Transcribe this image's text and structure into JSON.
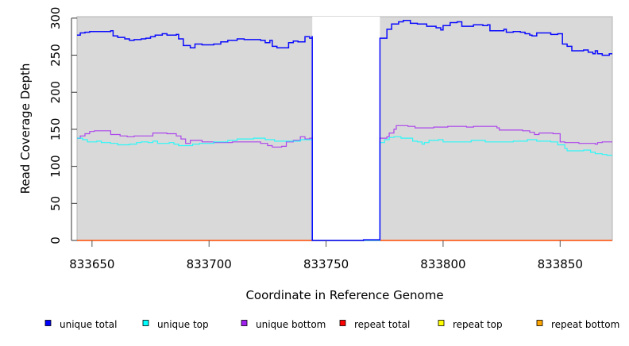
{
  "chart_data": {
    "type": "line",
    "title": "",
    "xlabel": "Coordinate in Reference Genome",
    "ylabel": "Read Coverage Depth",
    "xlim": [
      833643.6,
      833872.3
    ],
    "ylim": [
      0,
      302
    ],
    "xticks": [
      833650,
      833700,
      833750,
      833800,
      833850
    ],
    "xtick_labels": [
      "833650",
      "833700",
      "833750",
      "833800",
      "833850"
    ],
    "yticks": [
      0,
      50,
      100,
      150,
      200,
      250,
      300
    ],
    "ytick_labels": [
      "0",
      "50",
      "100",
      "150",
      "200",
      "250",
      "300"
    ],
    "background_color": "#d9d9d9",
    "uncovered_region": [
      833744.1,
      833773
    ],
    "legend_placement": "bottom",
    "series": [
      {
        "name": "unique total",
        "color": "#0000ff",
        "points": [
          [
            833643.6,
            277
          ],
          [
            833645,
            280
          ],
          [
            833647,
            281
          ],
          [
            833649,
            282
          ],
          [
            833658,
            283
          ],
          [
            833659,
            276
          ],
          [
            833661,
            274
          ],
          [
            833664,
            272
          ],
          [
            833666,
            270
          ],
          [
            833668,
            271
          ],
          [
            833671,
            272
          ],
          [
            833673,
            273
          ],
          [
            833675,
            275
          ],
          [
            833677,
            277
          ],
          [
            833680,
            279
          ],
          [
            833682,
            277
          ],
          [
            833686,
            278
          ],
          [
            833687,
            272
          ],
          [
            833689,
            263
          ],
          [
            833692,
            260
          ],
          [
            833694,
            265
          ],
          [
            833697,
            264
          ],
          [
            833702,
            265
          ],
          [
            833705,
            268
          ],
          [
            833708,
            270
          ],
          [
            833712,
            272
          ],
          [
            833715,
            271
          ],
          [
            833722,
            270
          ],
          [
            833724,
            267
          ],
          [
            833726,
            270
          ],
          [
            833727,
            262
          ],
          [
            833729,
            260
          ],
          [
            833734,
            267
          ],
          [
            833736,
            269
          ],
          [
            833738,
            268
          ],
          [
            833741,
            275
          ],
          [
            833743,
            273
          ],
          [
            833744,
            275
          ],
          [
            833744.1,
            0
          ],
          [
            833766,
            1
          ],
          [
            833773,
            273
          ],
          [
            833776,
            285
          ],
          [
            833778,
            292
          ],
          [
            833781,
            295
          ],
          [
            833783,
            297
          ],
          [
            833786,
            293
          ],
          [
            833789,
            292
          ],
          [
            833793,
            289
          ],
          [
            833797,
            287
          ],
          [
            833799,
            284
          ],
          [
            833800,
            290
          ],
          [
            833803,
            294
          ],
          [
            833806,
            295
          ],
          [
            833808,
            289
          ],
          [
            833812,
            289
          ],
          [
            833813,
            291
          ],
          [
            833817,
            290
          ],
          [
            833819,
            291
          ],
          [
            833820,
            283
          ],
          [
            833825,
            283
          ],
          [
            833826,
            285
          ],
          [
            833827,
            281
          ],
          [
            833830,
            282
          ],
          [
            833833,
            281
          ],
          [
            833835,
            279
          ],
          [
            833837,
            277
          ],
          [
            833838,
            276
          ],
          [
            833840,
            280
          ],
          [
            833844,
            280
          ],
          [
            833846,
            278
          ],
          [
            833849,
            279
          ],
          [
            833851,
            265
          ],
          [
            833853,
            262
          ],
          [
            833855,
            256
          ],
          [
            833860,
            257
          ],
          [
            833862,
            254
          ],
          [
            833864,
            252
          ],
          [
            833865,
            256
          ],
          [
            833866,
            252
          ],
          [
            833868,
            250
          ],
          [
            833870,
            250
          ],
          [
            833871,
            252
          ]
        ]
      },
      {
        "name": "unique top",
        "color": "#00ffff",
        "points": [
          [
            833643.6,
            138
          ],
          [
            833646,
            136
          ],
          [
            833648,
            133
          ],
          [
            833652,
            134
          ],
          [
            833654,
            132
          ],
          [
            833658,
            131
          ],
          [
            833661,
            129
          ],
          [
            833666,
            130
          ],
          [
            833669,
            132
          ],
          [
            833671,
            133
          ],
          [
            833674,
            132
          ],
          [
            833676,
            134
          ],
          [
            833678,
            131
          ],
          [
            833683,
            132
          ],
          [
            833685,
            130
          ],
          [
            833687,
            128
          ],
          [
            833691,
            128
          ],
          [
            833693,
            130
          ],
          [
            833696,
            131
          ],
          [
            833702,
            133
          ],
          [
            833708,
            135
          ],
          [
            833712,
            137
          ],
          [
            833716,
            137
          ],
          [
            833719,
            138
          ],
          [
            833724,
            136
          ],
          [
            833728,
            134
          ],
          [
            833734,
            134
          ],
          [
            833739,
            136
          ],
          [
            833744,
            137
          ],
          [
            833744.1,
            0
          ],
          [
            833766,
            0
          ],
          [
            833773,
            132
          ],
          [
            833775,
            136
          ],
          [
            833777,
            139
          ],
          [
            833779,
            140
          ],
          [
            833782,
            138
          ],
          [
            833785,
            138
          ],
          [
            833787,
            134
          ],
          [
            833789,
            133
          ],
          [
            833791,
            130
          ],
          [
            833792,
            132
          ],
          [
            833794,
            135
          ],
          [
            833798,
            136
          ],
          [
            833800,
            133
          ],
          [
            833812,
            135
          ],
          [
            833818,
            133
          ],
          [
            833826,
            133
          ],
          [
            833830,
            134
          ],
          [
            833836,
            136
          ],
          [
            833840,
            134
          ],
          [
            833846,
            133
          ],
          [
            833849,
            129
          ],
          [
            833852,
            124
          ],
          [
            833853,
            121
          ],
          [
            833860,
            122
          ],
          [
            833863,
            119
          ],
          [
            833865,
            117
          ],
          [
            833868,
            116
          ],
          [
            833870,
            115
          ]
        ]
      },
      {
        "name": "unique bottom",
        "color": "#a020f0",
        "points": [
          [
            833643.6,
            138
          ],
          [
            833645,
            141
          ],
          [
            833647,
            144
          ],
          [
            833649,
            147
          ],
          [
            833651,
            148
          ],
          [
            833658,
            143
          ],
          [
            833662,
            141
          ],
          [
            833665,
            140
          ],
          [
            833668,
            141
          ],
          [
            833676,
            145
          ],
          [
            833682,
            144
          ],
          [
            833686,
            141
          ],
          [
            833688,
            137
          ],
          [
            833690,
            131
          ],
          [
            833692,
            135
          ],
          [
            833697,
            133
          ],
          [
            833702,
            132
          ],
          [
            833710,
            133
          ],
          [
            833716,
            133
          ],
          [
            833722,
            131
          ],
          [
            833725,
            128
          ],
          [
            833727,
            126
          ],
          [
            833731,
            127
          ],
          [
            833733,
            133
          ],
          [
            833736,
            135
          ],
          [
            833739,
            140
          ],
          [
            833741,
            137
          ],
          [
            833743,
            138
          ],
          [
            833744.1,
            0
          ],
          [
            833766,
            0
          ],
          [
            833773,
            138
          ],
          [
            833776,
            140
          ],
          [
            833777,
            145
          ],
          [
            833779,
            150
          ],
          [
            833780,
            155
          ],
          [
            833785,
            154
          ],
          [
            833788,
            152
          ],
          [
            833796,
            153
          ],
          [
            833802,
            154
          ],
          [
            833810,
            153
          ],
          [
            833813,
            154
          ],
          [
            833823,
            152
          ],
          [
            833824,
            149
          ],
          [
            833834,
            148
          ],
          [
            833837,
            146
          ],
          [
            833839,
            143
          ],
          [
            833841,
            145
          ],
          [
            833847,
            144
          ],
          [
            833850,
            133
          ],
          [
            833852,
            132
          ],
          [
            833858,
            131
          ],
          [
            833865,
            130
          ],
          [
            833866,
            132
          ],
          [
            833868,
            133
          ],
          [
            833870,
            133
          ]
        ]
      },
      {
        "name": "repeat total",
        "color": "#ff0000",
        "points": [
          [
            833643.6,
            0
          ],
          [
            833872.3,
            0
          ]
        ]
      },
      {
        "name": "repeat top",
        "color": "#ffff00",
        "points": [
          [
            833643.6,
            0
          ],
          [
            833872.3,
            0
          ]
        ]
      },
      {
        "name": "repeat bottom",
        "color": "#ffa500",
        "points": [
          [
            833643.6,
            0
          ],
          [
            833872.3,
            0
          ]
        ]
      }
    ]
  }
}
